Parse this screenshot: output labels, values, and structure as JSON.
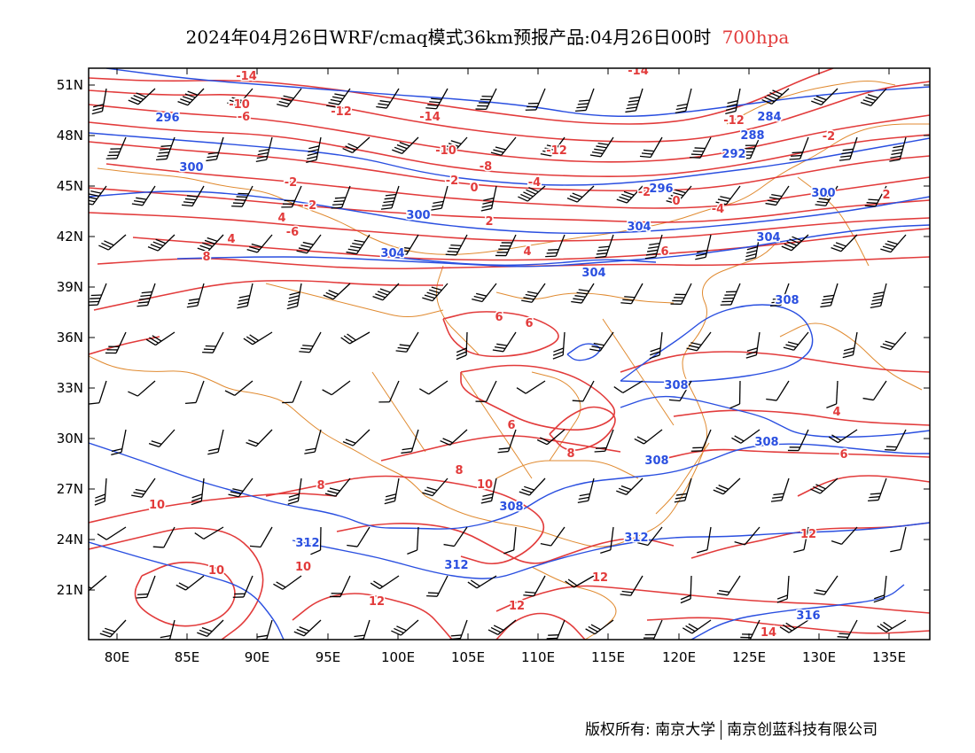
{
  "title": {
    "main": "2024年04月26日WRF/cmaq模式36km预报产品:04月26日00时",
    "level": "700hpa"
  },
  "map": {
    "lat_labels": [
      "51N",
      "48N",
      "45N",
      "42N",
      "39N",
      "36N",
      "33N",
      "30N",
      "27N",
      "24N",
      "21N"
    ],
    "lon_labels": [
      "80E",
      "85E",
      "90E",
      "95E",
      "100E",
      "105E",
      "110E",
      "115E",
      "120E",
      "125E",
      "130E",
      "135E"
    ],
    "height_contour_labels": [
      "296",
      "300",
      "300",
      "304",
      "304",
      "304",
      "308",
      "308",
      "308",
      "308",
      "308",
      "312",
      "312",
      "312",
      "316",
      "284",
      "288",
      "292",
      "296",
      "300",
      "304"
    ],
    "temperature_contour_labels": [
      "-14",
      "-14",
      "-14",
      "-12",
      "-12",
      "-12",
      "-10",
      "-10",
      "-8",
      "-6",
      "-6",
      "-4",
      "-4",
      "-2",
      "-2",
      "-2",
      "-2",
      "-2",
      "0",
      "0",
      "2",
      "2",
      "4",
      "4",
      "4",
      "6",
      "6",
      "6",
      "6",
      "8",
      "8",
      "8",
      "8",
      "10",
      "10",
      "10",
      "10",
      "12",
      "12",
      "12",
      "12",
      "14",
      "4",
      "6"
    ],
    "colors": {
      "temperature": "#e23b3b",
      "height": "#2a4fe0",
      "border": "#e08a30",
      "wind": "#000000",
      "frame": "#000000"
    }
  },
  "footer": {
    "copyright": "版权所有: 南京大学",
    "company": "南京创蓝科技有限公司"
  }
}
